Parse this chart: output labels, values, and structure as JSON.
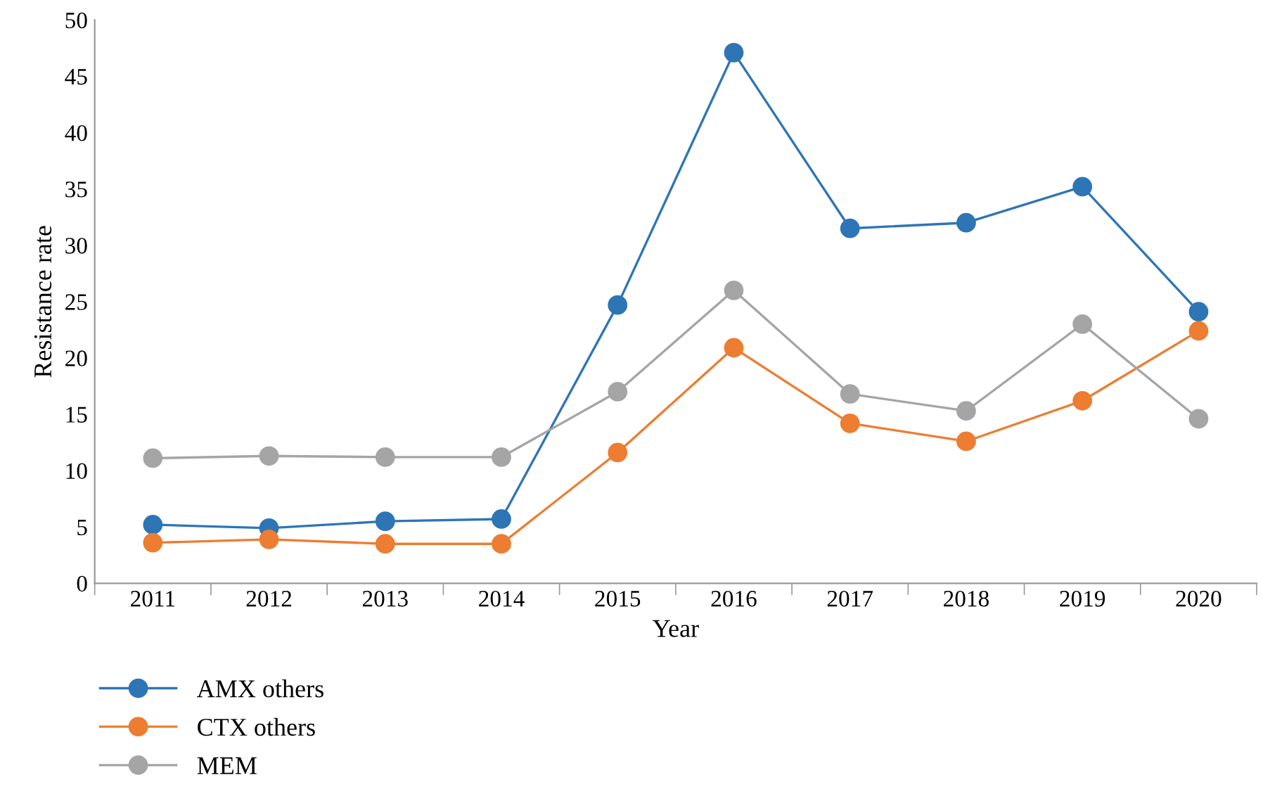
{
  "chart_data": {
    "type": "line",
    "xlabel": "Year",
    "ylabel": "Resistance rate",
    "categories": [
      "2011",
      "2012",
      "2013",
      "2014",
      "2015",
      "2016",
      "2017",
      "2018",
      "2019",
      "2020"
    ],
    "series": [
      {
        "name": "AMX others",
        "color": "#2e75b6",
        "values": [
          5.2,
          4.9,
          5.5,
          5.7,
          24.7,
          47.1,
          31.5,
          32.0,
          35.2,
          24.1
        ]
      },
      {
        "name": "CTX others",
        "color": "#ed7d31",
        "values": [
          3.6,
          3.9,
          3.5,
          3.5,
          11.6,
          20.9,
          14.2,
          12.6,
          16.2,
          22.4
        ]
      },
      {
        "name": "MEM",
        "color": "#a5a5a5",
        "values": [
          11.1,
          11.3,
          11.2,
          11.2,
          17.0,
          26.0,
          16.8,
          15.3,
          23.0,
          14.6
        ]
      }
    ],
    "ylim": [
      0,
      50
    ],
    "yticks": [
      0,
      5,
      10,
      15,
      20,
      25,
      30,
      35,
      40,
      45,
      50
    ],
    "grid": false,
    "legend": "bottom left",
    "marker": "circle",
    "line_style": "solid"
  }
}
